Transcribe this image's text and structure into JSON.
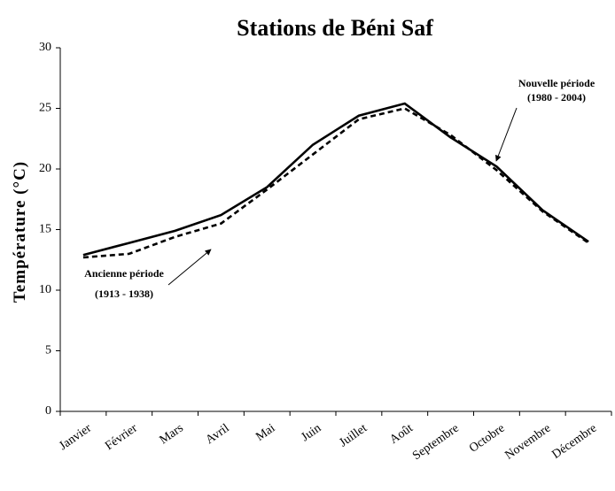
{
  "chart_data": {
    "type": "line",
    "title": "Stations de Béni Saf",
    "y_label": "Température (°C)",
    "categories": [
      "Janvier",
      "Février",
      "Mars",
      "Avril",
      "Mai",
      "Juin",
      "Juillet",
      "Août",
      "Septembre",
      "Octobre",
      "Novembre",
      "Décembre"
    ],
    "series": [
      {
        "color": "#000000",
        "dash": "solid",
        "values": [
          12.9,
          13.9,
          14.9,
          16.2,
          18.5,
          22.0,
          24.4,
          25.4,
          22.6,
          20.2,
          16.6,
          14.0
        ]
      },
      {
        "color": "#000000",
        "dash": "dashed",
        "values": [
          12.7,
          13.0,
          14.4,
          15.5,
          18.3,
          21.2,
          24.1,
          25.0,
          22.8,
          19.9,
          16.5,
          13.9
        ]
      }
    ],
    "annotations": [
      {
        "lines": [
          "Ancienne période",
          "(1913 - 1938)"
        ]
      },
      {
        "lines": [
          "Nouvelle période",
          "(1980 - 2004)"
        ]
      }
    ],
    "ylim": [
      0,
      30
    ],
    "yticks": [
      0,
      5,
      10,
      15,
      20,
      25,
      30
    ],
    "grid": false
  }
}
